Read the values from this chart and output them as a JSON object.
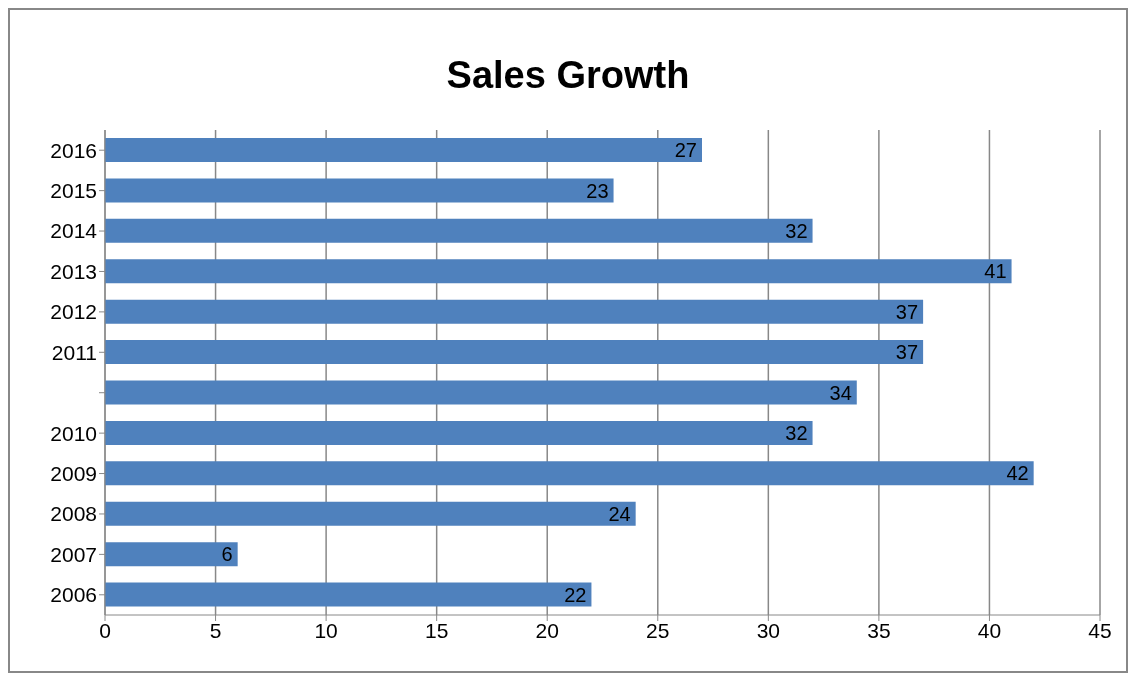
{
  "chart_data": {
    "type": "bar",
    "orientation": "horizontal",
    "title": "Sales Growth",
    "categories": [
      "2016",
      "2015",
      "2014",
      "2013",
      "2012",
      "2011",
      null,
      "2010",
      "2009",
      "2008",
      "2007",
      "2006"
    ],
    "values": [
      27,
      23,
      32,
      41,
      37,
      37,
      34,
      32,
      42,
      24,
      6,
      22
    ],
    "color": "#4f81bd",
    "xlim": [
      0,
      45
    ],
    "xticks": [
      0,
      5,
      10,
      15,
      20,
      25,
      30,
      35,
      40,
      45
    ],
    "grid": "x",
    "data_labels": true
  }
}
